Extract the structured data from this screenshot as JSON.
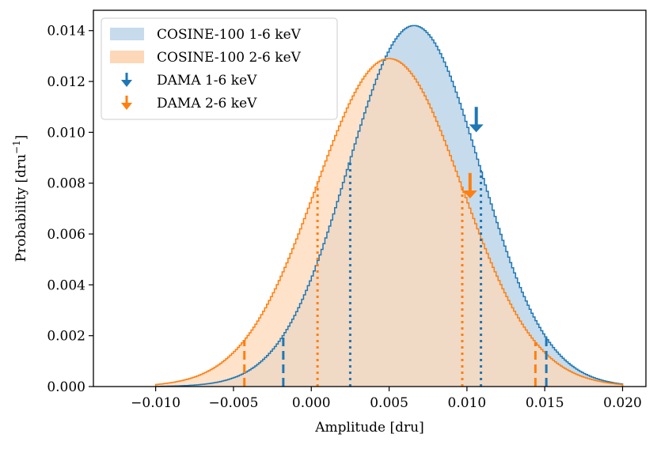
{
  "chart_data": {
    "type": "area",
    "title": "",
    "xlabel": "Amplitude [dru]",
    "ylabel": "Probability [dru",
    "ylabel_sup": "−1",
    "ylabel_close": "]",
    "xlim": [
      -0.014,
      0.0215
    ],
    "ylim": [
      0.0,
      0.0148
    ],
    "x_ticks": [
      -0.01,
      -0.005,
      0.0,
      0.005,
      0.01,
      0.015,
      0.02
    ],
    "x_tick_labels": [
      "−0.010",
      "−0.005",
      "0.000",
      "0.005",
      "0.010",
      "0.015",
      "0.020"
    ],
    "y_ticks": [
      0.0,
      0.002,
      0.004,
      0.006,
      0.008,
      0.01,
      0.012,
      0.014
    ],
    "y_tick_labels": [
      "0.000",
      "0.002",
      "0.004",
      "0.006",
      "0.008",
      "0.010",
      "0.012",
      "0.014"
    ],
    "grid": false,
    "legend_position": "upper-left",
    "series": [
      {
        "name": "COSINE-100 1-6 keV",
        "color": "#1f77b4",
        "fill": "#c6dbec",
        "x_range": [
          -0.01,
          0.02
        ],
        "peak_x": 0.0066,
        "peak_y": 0.0142,
        "sigma": 0.00425,
        "intervals_68": [
          0.0025,
          0.0109
        ],
        "intervals_95": [
          -0.0018,
          0.0151
        ],
        "marker": {
          "name": "DAMA 1-6 keV",
          "x": 0.0106,
          "y_top": 0.011,
          "y_bottom": 0.01
        }
      },
      {
        "name": "COSINE-100 2-6 keV",
        "color": "#ff7f0e",
        "fill": "#fdd8b8",
        "x_range": [
          -0.01,
          0.02
        ],
        "peak_x": 0.005,
        "peak_y": 0.0129,
        "sigma": 0.0047,
        "intervals_68": [
          0.0004,
          0.0097
        ],
        "intervals_95": [
          -0.0043,
          0.0144
        ],
        "marker": {
          "name": "DAMA 2-6 keV",
          "x": 0.0102,
          "y_top": 0.0084,
          "y_bottom": 0.0074
        }
      }
    ],
    "legend": [
      "COSINE-100 1-6 keV",
      "COSINE-100 2-6 keV",
      "DAMA 1-6 keV",
      "DAMA 2-6 keV"
    ]
  }
}
